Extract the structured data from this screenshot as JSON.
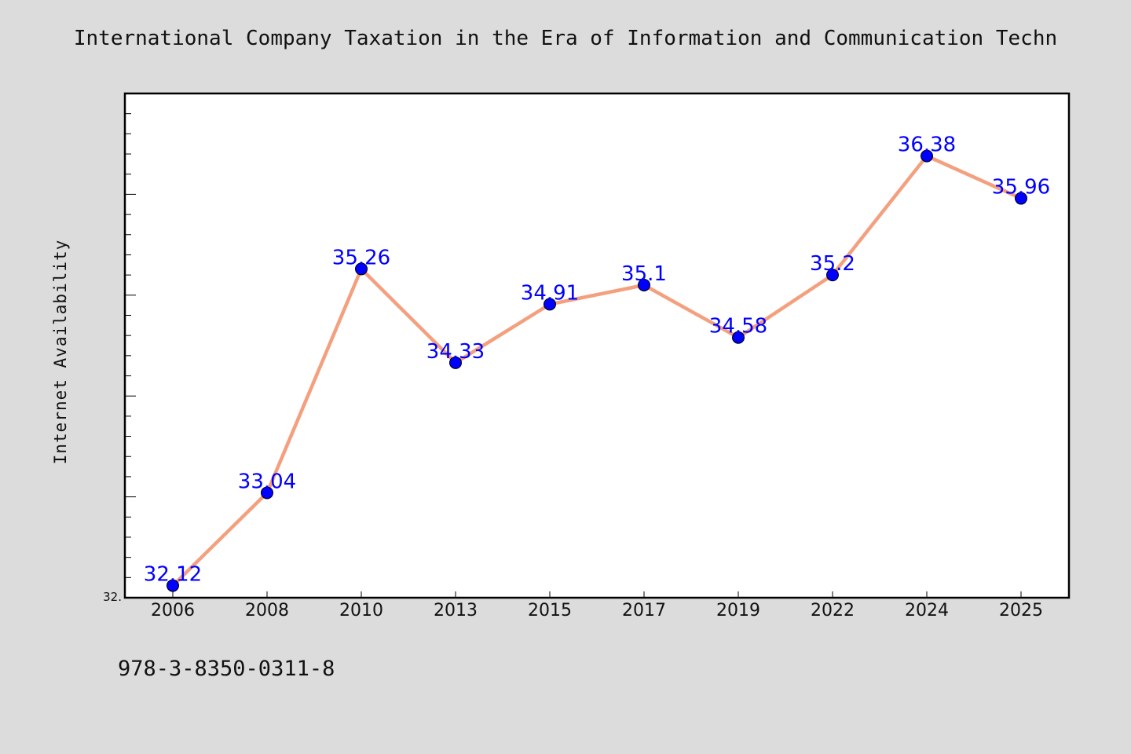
{
  "chart_data": {
    "type": "line",
    "title": "International Company Taxation in the Era of Information and Communication Techn",
    "xlabel": "",
    "ylabel": "Internet Availability",
    "categories": [
      "2006",
      "2008",
      "2010",
      "2013",
      "2015",
      "2017",
      "2019",
      "2022",
      "2024",
      "2025"
    ],
    "series": [
      {
        "values": [
          32.12,
          33.04,
          35.26,
          34.33,
          34.91,
          35.1,
          34.58,
          35.2,
          36.38,
          35.96
        ],
        "data_labels": [
          "32.12",
          "33.04",
          "35.26",
          "34.33",
          "34.91",
          "35.1",
          "34.58",
          "35.2",
          "36.38",
          "35.96"
        ],
        "line_color": "#f4a07e",
        "marker_color": "#0000ff"
      }
    ],
    "ylim": [
      32.0,
      37.0
    ],
    "y_tick_labels": [
      "32."
    ],
    "grid": false,
    "legend": "none"
  },
  "footer": {
    "isbn": "978-3-8350-0311-8"
  },
  "colors": {
    "background": "#dcdcdc",
    "plot_background": "#ffffff",
    "line": "#f4a07e",
    "marker": "#0000ff",
    "data_label": "#0000ff"
  }
}
